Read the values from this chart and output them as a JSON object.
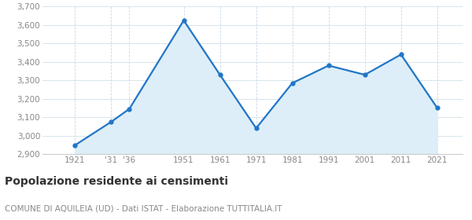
{
  "years": [
    1921,
    1931,
    1936,
    1951,
    1961,
    1971,
    1981,
    1991,
    2001,
    2011,
    2021
  ],
  "values": [
    2948,
    3075,
    3145,
    3625,
    3330,
    3040,
    3285,
    3380,
    3330,
    3440,
    3150
  ],
  "x_labels": [
    "1921",
    "'31",
    "'36",
    "1951",
    "1961",
    "1971",
    "1981",
    "1991",
    "2001",
    "2011",
    "2021"
  ],
  "ylim": [
    2900,
    3700
  ],
  "yticks": [
    2900,
    3000,
    3100,
    3200,
    3300,
    3400,
    3500,
    3600,
    3700
  ],
  "line_color": "#2176c7",
  "fill_color": "#ddeef8",
  "marker_color": "#2176c7",
  "bg_color": "#ffffff",
  "grid_color_h": "#d0dfe8",
  "grid_color_v": "#c8d8e8",
  "title": "Popolazione residente ai censimenti",
  "subtitle": "COMUNE DI AQUILEIA (UD) - Dati ISTAT - Elaborazione TUTTITALIA.IT",
  "title_fontsize": 10,
  "subtitle_fontsize": 7.5,
  "xlim_left": 1912,
  "xlim_right": 2028
}
